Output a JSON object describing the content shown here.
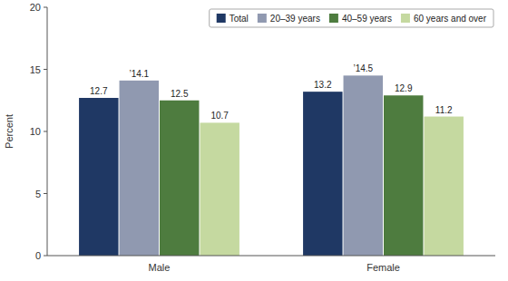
{
  "chart_data": {
    "type": "bar",
    "categories": [
      "Male",
      "Female"
    ],
    "series": [
      {
        "name": "Total",
        "color": "#1f3864",
        "values": [
          12.7,
          13.2
        ],
        "value_labels": [
          "12.7",
          "13.2"
        ]
      },
      {
        "name": "20–39 years",
        "color": "#9099b0",
        "values": [
          14.1,
          14.5
        ],
        "value_labels": [
          "’14.1",
          "’14.5"
        ]
      },
      {
        "name": "40–59 years",
        "color": "#4e7c3f",
        "values": [
          12.5,
          12.9
        ],
        "value_labels": [
          "12.5",
          "12.9"
        ]
      },
      {
        "name": "60 years and over",
        "color": "#c5d9a0",
        "values": [
          10.7,
          11.2
        ],
        "value_labels": [
          "10.7",
          "11.2"
        ]
      }
    ],
    "ylabel": "Percent",
    "ylim": [
      0,
      20
    ],
    "yticks": [
      0,
      5,
      10,
      15,
      20
    ],
    "data_labels": true,
    "legend": "upper right",
    "grid": false
  }
}
